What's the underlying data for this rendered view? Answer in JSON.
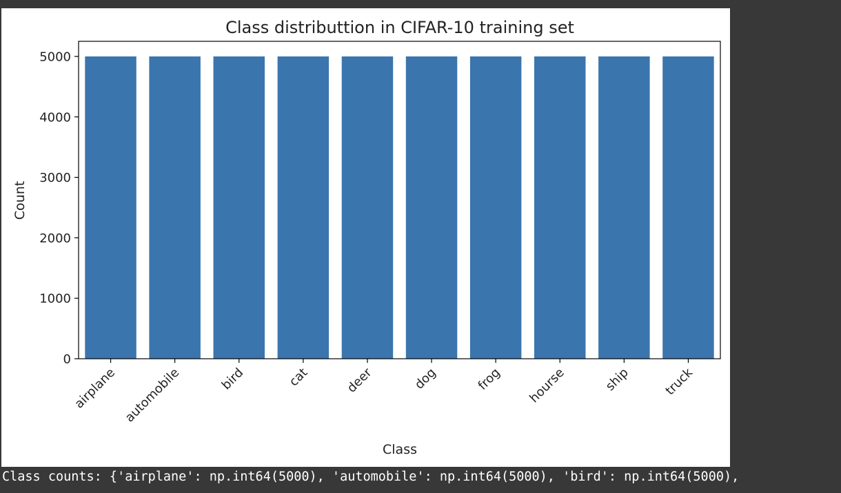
{
  "theme": {
    "background": "#383838",
    "figure_background": "#ffffff",
    "bar_color": "#3a75ae",
    "text_color": "#222222",
    "output_text_color": "#ffffff"
  },
  "chart_data": {
    "type": "bar",
    "title": "Class distributtion in CIFAR-10 training set",
    "xlabel": "Class",
    "ylabel": "Count",
    "categories": [
      "airplane",
      "automobile",
      "bird",
      "cat",
      "deer",
      "dog",
      "frog",
      "hourse",
      "ship",
      "truck"
    ],
    "values": [
      5000,
      5000,
      5000,
      5000,
      5000,
      5000,
      5000,
      5000,
      5000,
      5000
    ],
    "ylim": [
      0,
      5250
    ],
    "yticks": [
      0,
      1000,
      2000,
      3000,
      4000,
      5000
    ],
    "ytick_labels": [
      "0",
      "1000",
      "2000",
      "3000",
      "4000",
      "5000"
    ],
    "xtick_rotation": 45,
    "grid": false,
    "legend": "none"
  },
  "output": {
    "text": "Class counts: {'airplane': np.int64(5000), 'automobile': np.int64(5000), 'bird': np.int64(5000),"
  }
}
